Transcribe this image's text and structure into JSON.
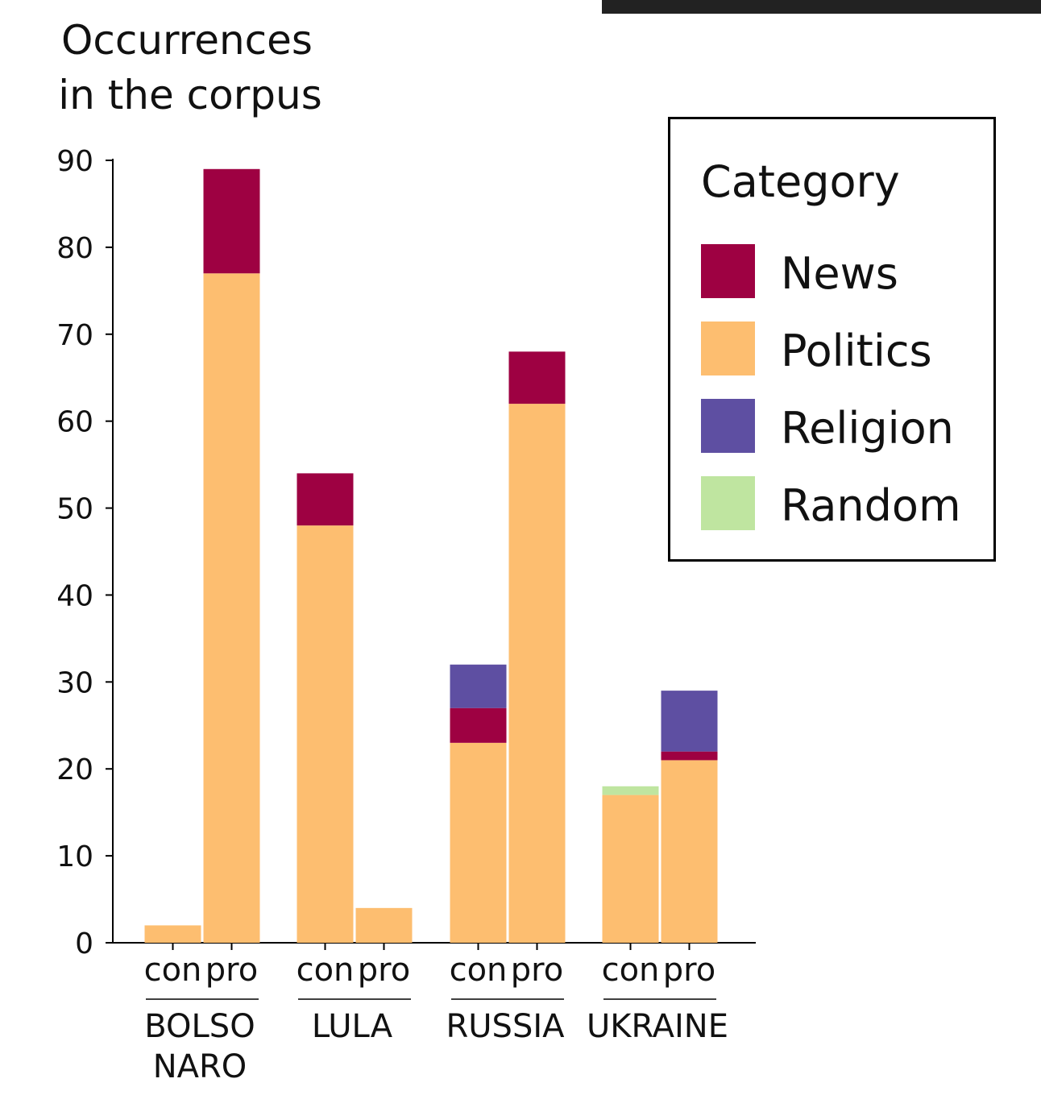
{
  "chart_data": {
    "type": "bar",
    "stacked": true,
    "ylabel": [
      "Occurrences",
      "in the corpus"
    ],
    "ylim": [
      0,
      90
    ],
    "yticks": [
      0,
      10,
      20,
      30,
      40,
      50,
      60,
      70,
      80,
      90
    ],
    "groups": [
      {
        "label": [
          "BOLSO",
          "NARO"
        ],
        "bars": [
          {
            "label": "con",
            "values": {
              "Politics": 2,
              "News": 0,
              "Religion": 0,
              "Random": 0
            }
          },
          {
            "label": "pro",
            "values": {
              "Politics": 77,
              "News": 12,
              "Religion": 0,
              "Random": 0
            }
          }
        ]
      },
      {
        "label": [
          "LULA"
        ],
        "bars": [
          {
            "label": "con",
            "values": {
              "Politics": 48,
              "News": 6,
              "Religion": 0,
              "Random": 0
            }
          },
          {
            "label": "pro",
            "values": {
              "Politics": 4,
              "News": 0,
              "Religion": 0,
              "Random": 0
            }
          }
        ]
      },
      {
        "label": [
          "RUSSIA"
        ],
        "bars": [
          {
            "label": "con",
            "values": {
              "Politics": 23,
              "News": 4,
              "Religion": 5,
              "Random": 0
            }
          },
          {
            "label": "pro",
            "values": {
              "Politics": 62,
              "News": 6,
              "Religion": 0,
              "Random": 0
            }
          }
        ]
      },
      {
        "label": [
          "UKRAINE"
        ],
        "bars": [
          {
            "label": "con",
            "values": {
              "Politics": 17,
              "News": 0,
              "Religion": 0,
              "Random": 1
            }
          },
          {
            "label": "pro",
            "values": {
              "Politics": 21,
              "News": 1,
              "Religion": 7,
              "Random": 0
            }
          }
        ]
      }
    ],
    "stack_order": [
      "Politics",
      "Random",
      "News",
      "Religion"
    ],
    "series": [
      {
        "name": "News",
        "color": "#9e0142"
      },
      {
        "name": "Politics",
        "color": "#fdbe70"
      },
      {
        "name": "Religion",
        "color": "#5e4fa2"
      },
      {
        "name": "Random",
        "color": "#bfe5a0"
      }
    ],
    "legend": {
      "title": "Category",
      "position": "top-right"
    },
    "grid": false
  }
}
